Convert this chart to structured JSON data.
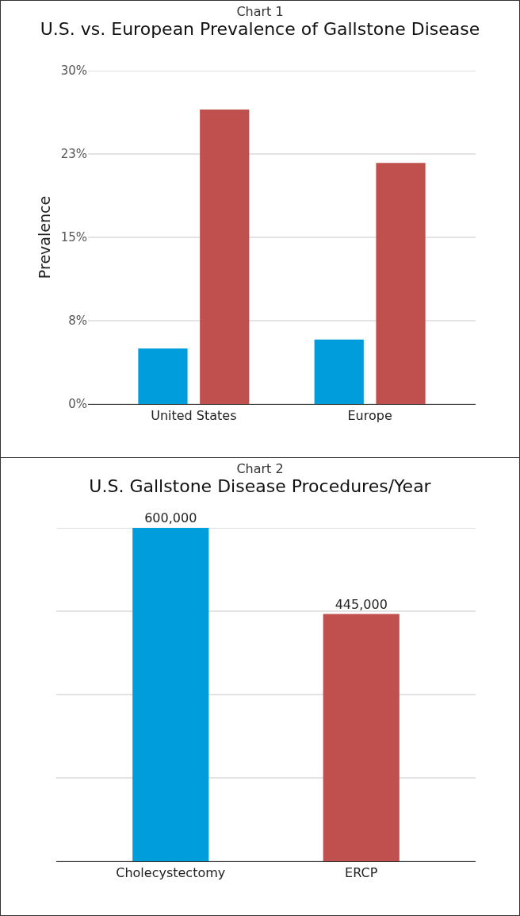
{
  "chart_data": [
    {
      "type": "bar",
      "subtitle": "Chart 1",
      "title": "U.S. vs. European Prevalence of Gallstone Disease",
      "ylabel": "Prevalence",
      "categories": [
        "United States",
        "Europe"
      ],
      "series": [
        {
          "color": "#009ddc",
          "values": [
            5.0,
            5.8
          ]
        },
        {
          "color": "#c0504d",
          "values": [
            26.5,
            21.7
          ]
        }
      ],
      "ylim": [
        0,
        30
      ],
      "yticks": [
        {
          "value": 0,
          "label": "0%"
        },
        {
          "value": 7.5,
          "label": "8%"
        },
        {
          "value": 15,
          "label": "15%"
        },
        {
          "value": 22.5,
          "label": "23%"
        },
        {
          "value": 30,
          "label": "30%"
        }
      ],
      "grid": "y"
    },
    {
      "type": "bar",
      "subtitle": "Chart 2",
      "title": "U.S. Gallstone Disease Procedures/Year",
      "categories": [
        "Cholecystectomy",
        "ERCP"
      ],
      "values": [
        600000,
        445000
      ],
      "colors": [
        "#009ddc",
        "#c0504d"
      ],
      "value_labels": [
        "600,000",
        "445,000"
      ],
      "ylim": [
        0,
        600000
      ],
      "yticks": [
        {
          "value": 0,
          "label": null
        },
        {
          "value": 150000,
          "label": null
        },
        {
          "value": 300000,
          "label": null
        },
        {
          "value": 450000,
          "label": null
        },
        {
          "value": 600000,
          "label": null
        }
      ],
      "grid": "y",
      "tick_labels": "x"
    }
  ]
}
